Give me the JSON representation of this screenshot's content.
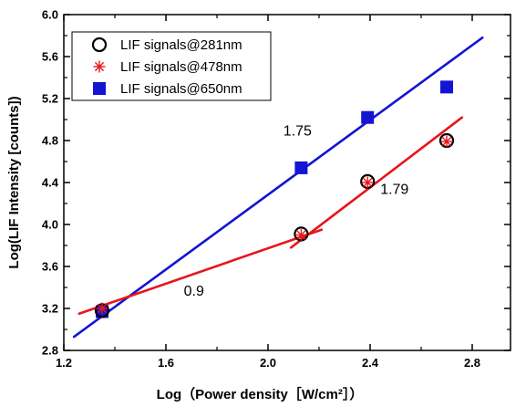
{
  "chart_data": {
    "type": "scatter",
    "title": "",
    "xlabel": "Log（Power density［W/cm²］）",
    "ylabel": "Log(LIF Intensity [counts])",
    "xlim": [
      1.2,
      2.95
    ],
    "ylim": [
      2.8,
      6.0
    ],
    "xticks": [
      1.2,
      1.6,
      2.0,
      2.4,
      2.8
    ],
    "yticks": [
      2.8,
      3.2,
      3.6,
      4.0,
      4.4,
      4.8,
      5.2,
      5.6,
      6.0
    ],
    "xtick_labels": [
      "1.2",
      "1.6",
      "2.0",
      "2.4",
      "2.8"
    ],
    "ytick_labels": [
      "2.8",
      "3.2",
      "3.6",
      "4.0",
      "4.4",
      "4.8",
      "5.2",
      "5.6",
      "6.0"
    ],
    "grid": false,
    "legend_position": "top-left",
    "series": [
      {
        "name": "LIF signals@281nm",
        "marker": "open-circle",
        "color": "#000000",
        "points": [
          [
            1.35,
            3.18
          ],
          [
            2.13,
            3.91
          ],
          [
            2.39,
            4.41
          ],
          [
            2.7,
            4.8
          ]
        ]
      },
      {
        "name": "LIF signals@478nm",
        "marker": "asterisk",
        "color": "#e8161b",
        "points": [
          [
            1.35,
            3.2
          ],
          [
            2.13,
            3.9
          ],
          [
            2.39,
            4.4
          ],
          [
            2.7,
            4.79
          ]
        ]
      },
      {
        "name": "LIF signals@650nm",
        "marker": "filled-square",
        "color": "#1414d2",
        "points": [
          [
            1.35,
            3.17
          ],
          [
            2.13,
            4.54
          ],
          [
            2.39,
            5.02
          ],
          [
            2.7,
            5.31
          ]
        ]
      }
    ],
    "fit_lines": [
      {
        "color": "#1414d2",
        "from": [
          1.24,
          2.93
        ],
        "to": [
          2.84,
          5.78
        ]
      },
      {
        "color": "#e8161b",
        "from": [
          1.26,
          3.15
        ],
        "to": [
          2.21,
          3.95
        ]
      },
      {
        "color": "#e8161b",
        "from": [
          2.09,
          3.78
        ],
        "to": [
          2.76,
          5.02
        ]
      }
    ],
    "annotations": [
      {
        "text": "1.75",
        "x": 2.06,
        "y": 4.85
      },
      {
        "text": "1.79",
        "x": 2.44,
        "y": 4.29
      },
      {
        "text": "0.9",
        "x": 1.67,
        "y": 3.32
      }
    ]
  }
}
